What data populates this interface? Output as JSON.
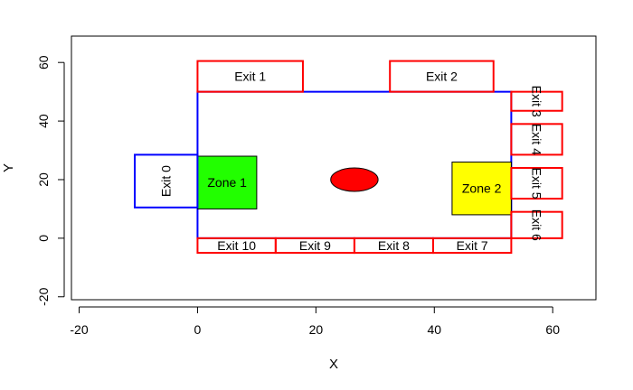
{
  "chart_data": {
    "type": "scatter",
    "xlabel": "X",
    "ylabel": "Y",
    "xlim": [
      -21.3,
      67.3
    ],
    "ylim": [
      -21.0,
      69.0
    ],
    "x_ticks": [
      -20,
      0,
      20,
      40,
      60
    ],
    "y_ticks": [
      -20,
      0,
      20,
      40,
      60
    ],
    "x_tick_labels": [
      "-20",
      "0",
      "20",
      "40",
      "60"
    ],
    "y_tick_labels": [
      "-20",
      "0",
      "20",
      "40",
      "60"
    ],
    "room": {
      "x0": 0,
      "y0": 0,
      "x1": 53,
      "y1": 50,
      "color": "#0000ff"
    },
    "exits": [
      {
        "label": "Exit 0",
        "x0": -10.6,
        "y0": 10.5,
        "x1": 0,
        "y1": 28.5,
        "color": "#0000ff",
        "text_rotation": -90
      },
      {
        "label": "Exit 1",
        "x0": 0,
        "y0": 50,
        "x1": 17.8,
        "y1": 60.5,
        "color": "#ff0000",
        "text_rotation": 0
      },
      {
        "label": "Exit 2",
        "x0": 32.5,
        "y0": 50,
        "x1": 50,
        "y1": 60.5,
        "color": "#ff0000",
        "text_rotation": 0
      },
      {
        "label": "Exit 3",
        "x0": 53,
        "y0": 43.5,
        "x1": 61.6,
        "y1": 50,
        "color": "#ff0000",
        "text_rotation": 90
      },
      {
        "label": "Exit 4",
        "x0": 53,
        "y0": 28.5,
        "x1": 61.6,
        "y1": 39,
        "color": "#ff0000",
        "text_rotation": 90
      },
      {
        "label": "Exit 5",
        "x0": 53,
        "y0": 13.5,
        "x1": 61.6,
        "y1": 24,
        "color": "#ff0000",
        "text_rotation": 90
      },
      {
        "label": "Exit 6",
        "x0": 53,
        "y0": 0,
        "x1": 61.6,
        "y1": 9,
        "color": "#ff0000",
        "text_rotation": 90
      },
      {
        "label": "Exit 7",
        "x0": 39.8,
        "y0": -5,
        "x1": 53,
        "y1": 0,
        "color": "#ff0000",
        "text_rotation": 0
      },
      {
        "label": "Exit 8",
        "x0": 26.5,
        "y0": -5,
        "x1": 39.8,
        "y1": 0,
        "color": "#ff0000",
        "text_rotation": 0
      },
      {
        "label": "Exit 9",
        "x0": 13.2,
        "y0": -5,
        "x1": 26.5,
        "y1": 0,
        "color": "#ff0000",
        "text_rotation": 0
      },
      {
        "label": "Exit 10",
        "x0": 0,
        "y0": -5,
        "x1": 13.2,
        "y1": 0,
        "color": "#ff0000",
        "text_rotation": 0
      }
    ],
    "zones": [
      {
        "label": "Zone 1",
        "x0": 0,
        "y0": 10,
        "x1": 10,
        "y1": 28,
        "color": "#22ff00"
      },
      {
        "label": "Zone 2",
        "x0": 43,
        "y0": 8,
        "x1": 53,
        "y1": 26,
        "color": "#ffff00"
      }
    ],
    "obstacle": {
      "cx": 26.5,
      "cy": 20,
      "r": 4,
      "color": "#ff0000"
    }
  }
}
